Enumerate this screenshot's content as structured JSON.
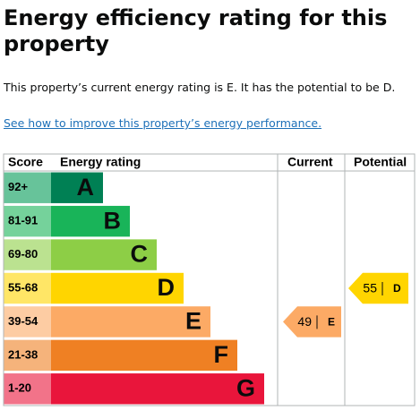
{
  "title": "Energy efficiency rating for this property",
  "summary": "This property’s current energy rating is E. It has the potential to be D.",
  "link": "See how to improve this property’s energy performance.",
  "table": {
    "headers": [
      "Score",
      "Energy rating",
      "Current",
      "Potential"
    ],
    "bands": [
      {
        "score": "92+",
        "rating": "A",
        "color": "#008054",
        "tint": "#67c39a"
      },
      {
        "score": "81-91",
        "rating": "B",
        "color": "#19b459",
        "tint": "#75d29b"
      },
      {
        "score": "69-80",
        "rating": "C",
        "color": "#8dce46",
        "tint": "#bbe290"
      },
      {
        "score": "55-68",
        "rating": "D",
        "color": "#ffd500",
        "tint": "#ffe666"
      },
      {
        "score": "39-54",
        "rating": "E",
        "color": "#fcaa65",
        "tint": "#fdcca3"
      },
      {
        "score": "21-38",
        "rating": "F",
        "color": "#ef8023",
        "tint": "#f5b37b"
      },
      {
        "score": "1-20",
        "rating": "G",
        "color": "#e9153b",
        "tint": "#f27389"
      }
    ],
    "current": {
      "score": 49,
      "rating": "E"
    },
    "potential": {
      "score": 55,
      "rating": "D"
    }
  }
}
